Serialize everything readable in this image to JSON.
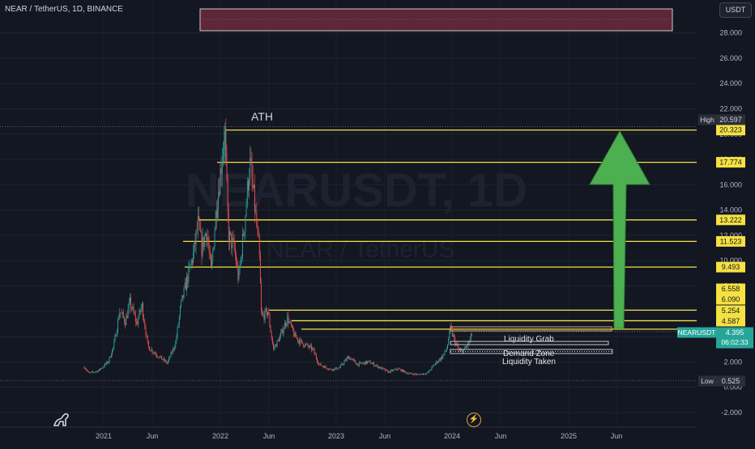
{
  "header": {
    "symbol_line": "NEAR / TetherUS, 1D, BINANCE"
  },
  "currency_button": "USDT",
  "watermark": {
    "ticker": "NEARUSDT, 1D",
    "name": "NEAR / TetherUS"
  },
  "colors": {
    "background": "#131722",
    "up": "#26a69a",
    "down": "#ef5350",
    "level": "#f5e142",
    "arrow": "#4caf50",
    "zone": "#6b2a3c"
  },
  "icons": {
    "logo": "tradingview-logo-icon",
    "bolt": "lightning-icon"
  },
  "chart_data": {
    "type": "candlestick",
    "x_ticks": [
      "2021",
      "Jun",
      "2022",
      "Jun",
      "2023",
      "Jun",
      "2024",
      "Jun",
      "2025",
      "Jun"
    ],
    "y_ticks": [
      "28.000",
      "26.000",
      "24.000",
      "22.000",
      "20.000",
      "18.000",
      "16.000",
      "14.000",
      "12.000",
      "10.000",
      "8.000",
      "6.000",
      "4.000",
      "2.000",
      "0.000",
      "-2.000"
    ],
    "ylim": [
      -2.5,
      30.5
    ],
    "price_series": [
      {
        "d": "2020-11-01",
        "p": 1.6
      },
      {
        "d": "2020-11-15",
        "p": 1.1
      },
      {
        "d": "2020-12-15",
        "p": 1.3
      },
      {
        "d": "2021-01-15",
        "p": 2.0
      },
      {
        "d": "2021-02-01",
        "p": 3.2
      },
      {
        "d": "2021-02-20",
        "p": 6.0
      },
      {
        "d": "2021-03-10",
        "p": 5.2
      },
      {
        "d": "2021-03-25",
        "p": 6.7
      },
      {
        "d": "2021-04-15",
        "p": 5.0
      },
      {
        "d": "2021-05-01",
        "p": 6.5
      },
      {
        "d": "2021-05-20",
        "p": 3.2
      },
      {
        "d": "2021-06-20",
        "p": 2.5
      },
      {
        "d": "2021-07-20",
        "p": 1.9
      },
      {
        "d": "2021-08-15",
        "p": 3.5
      },
      {
        "d": "2021-09-01",
        "p": 6.5
      },
      {
        "d": "2021-09-20",
        "p": 8.5
      },
      {
        "d": "2021-10-10",
        "p": 10.5
      },
      {
        "d": "2021-10-25",
        "p": 13.0
      },
      {
        "d": "2021-11-05",
        "p": 11.0
      },
      {
        "d": "2021-11-20",
        "p": 12.5
      },
      {
        "d": "2021-12-05",
        "p": 9.0
      },
      {
        "d": "2021-12-20",
        "p": 14.0
      },
      {
        "d": "2022-01-05",
        "p": 17.5
      },
      {
        "d": "2022-01-16",
        "p": 20.6
      },
      {
        "d": "2022-01-28",
        "p": 12.0
      },
      {
        "d": "2022-02-15",
        "p": 11.0
      },
      {
        "d": "2022-03-01",
        "p": 8.5
      },
      {
        "d": "2022-03-20",
        "p": 13.0
      },
      {
        "d": "2022-04-05",
        "p": 17.8
      },
      {
        "d": "2022-04-20",
        "p": 14.5
      },
      {
        "d": "2022-05-05",
        "p": 10.5
      },
      {
        "d": "2022-05-12",
        "p": 5.5
      },
      {
        "d": "2022-06-01",
        "p": 6.0
      },
      {
        "d": "2022-06-18",
        "p": 3.0
      },
      {
        "d": "2022-07-10",
        "p": 4.0
      },
      {
        "d": "2022-08-01",
        "p": 5.5
      },
      {
        "d": "2022-08-25",
        "p": 4.0
      },
      {
        "d": "2022-09-15",
        "p": 3.5
      },
      {
        "d": "2022-10-20",
        "p": 3.0
      },
      {
        "d": "2022-11-09",
        "p": 1.8
      },
      {
        "d": "2022-12-15",
        "p": 1.4
      },
      {
        "d": "2023-01-10",
        "p": 1.5
      },
      {
        "d": "2023-02-10",
        "p": 2.4
      },
      {
        "d": "2023-03-10",
        "p": 1.8
      },
      {
        "d": "2023-04-15",
        "p": 2.0
      },
      {
        "d": "2023-05-15",
        "p": 1.6
      },
      {
        "d": "2023-06-15",
        "p": 1.2
      },
      {
        "d": "2023-07-15",
        "p": 1.45
      },
      {
        "d": "2023-08-15",
        "p": 1.1
      },
      {
        "d": "2023-09-15",
        "p": 1.0
      },
      {
        "d": "2023-10-15",
        "p": 1.1
      },
      {
        "d": "2023-11-10",
        "p": 1.9
      },
      {
        "d": "2023-12-01",
        "p": 2.4
      },
      {
        "d": "2023-12-15",
        "p": 3.0
      },
      {
        "d": "2023-12-27",
        "p": 4.6
      },
      {
        "d": "2024-01-10",
        "p": 3.6
      },
      {
        "d": "2024-01-24",
        "p": 2.8
      },
      {
        "d": "2024-02-10",
        "p": 3.0
      },
      {
        "d": "2024-02-25",
        "p": 3.6
      },
      {
        "d": "2024-03-05",
        "p": 4.4
      }
    ],
    "levels": [
      20.323,
      17.774,
      13.222,
      11.523,
      9.493,
      6.09,
      5.254,
      4.587
    ],
    "price_labels": [
      "20.323",
      "17.774",
      "13.222",
      "11.523",
      "9.493",
      "6.558",
      "6.090",
      "5.254",
      "4.587"
    ],
    "high": {
      "label": "High",
      "value": "20.597"
    },
    "low": {
      "label": "Low",
      "value": "0.525"
    },
    "current": {
      "label": "NEARUSDT",
      "value": "4.395",
      "countdown": "06:02:33"
    },
    "annotations": {
      "ath": "ATH",
      "liquidity_grab": "Liquidity Grab",
      "demand_zone": "Demand Zone",
      "liquidity_taken": "Liquidity Taken"
    }
  }
}
